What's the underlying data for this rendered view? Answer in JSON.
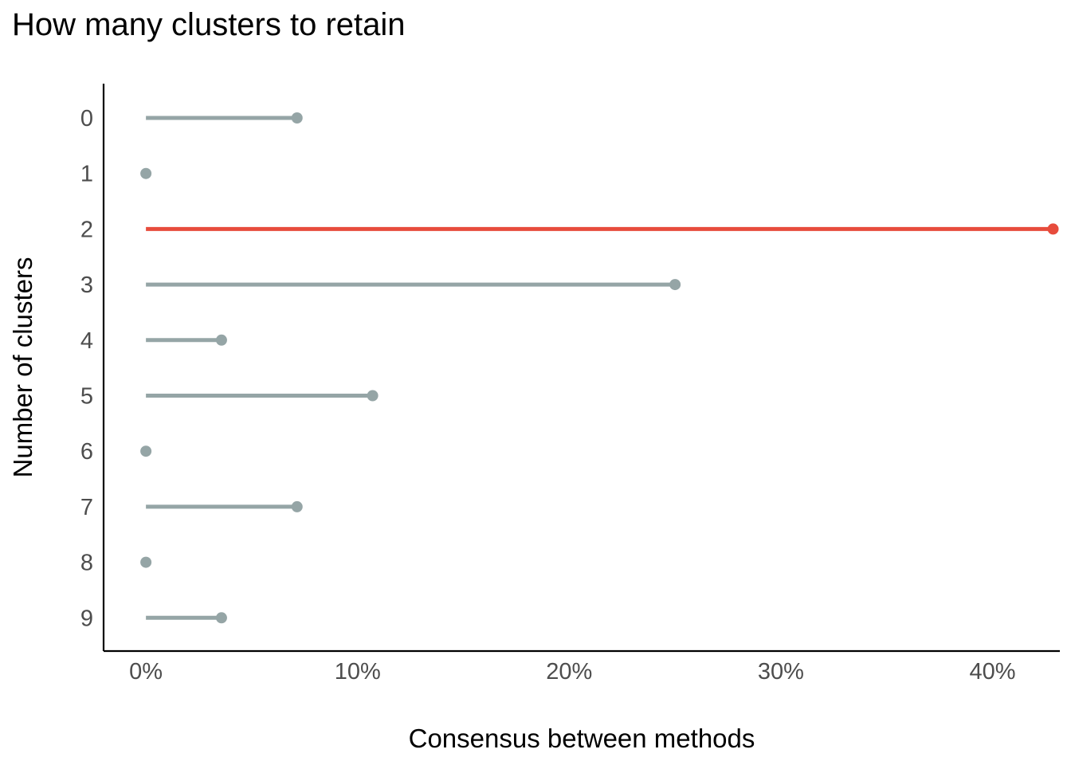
{
  "chart_data": {
    "type": "lollipop",
    "title": "How many clusters to retain",
    "xlabel": "Consensus between methods",
    "ylabel": "Number of clusters",
    "x_format": "percent",
    "xlim": [
      -0.02,
      0.4318
    ],
    "x_ticks": [
      0,
      0.1,
      0.2,
      0.3,
      0.4
    ],
    "x_tick_labels": [
      "0%",
      "10%",
      "20%",
      "30%",
      "40%"
    ],
    "categories": [
      "0",
      "1",
      "2",
      "3",
      "4",
      "5",
      "6",
      "7",
      "8",
      "9"
    ],
    "values": [
      0.0714,
      0,
      0.4286,
      0.25,
      0.0357,
      0.1071,
      0,
      0.0714,
      0,
      0.0357
    ],
    "highlight_index": 2,
    "colors": {
      "default": "#95a5a6",
      "highlight": "#e74c3c"
    },
    "grid": false
  }
}
